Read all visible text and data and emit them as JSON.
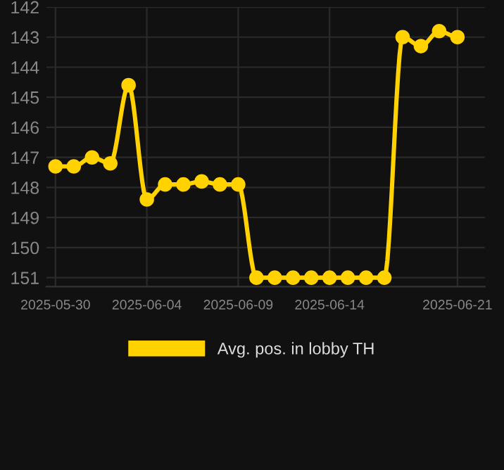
{
  "chart_data": {
    "type": "line",
    "x": [
      "2025-05-30",
      "2025-05-31",
      "2025-06-01",
      "2025-06-02",
      "2025-06-03",
      "2025-06-04",
      "2025-06-05",
      "2025-06-06",
      "2025-06-07",
      "2025-06-08",
      "2025-06-09",
      "2025-06-10",
      "2025-06-11",
      "2025-06-12",
      "2025-06-13",
      "2025-06-14",
      "2025-06-15",
      "2025-06-16",
      "2025-06-17",
      "2025-06-18",
      "2025-06-19",
      "2025-06-20",
      "2025-06-21"
    ],
    "series": [
      {
        "name": "Avg. pos. in lobby TH",
        "color": "#ffd200",
        "values": [
          147.3,
          147.3,
          147.0,
          147.2,
          144.6,
          148.4,
          147.9,
          147.9,
          147.8,
          147.9,
          147.9,
          151,
          151,
          151,
          151,
          151,
          151,
          151,
          151,
          143.0,
          143.3,
          142.8,
          143.0
        ]
      }
    ],
    "ylim": [
      151.3,
      142
    ],
    "yticks": [
      142,
      143,
      144,
      145,
      146,
      147,
      148,
      149,
      150,
      151
    ],
    "xlim": [
      "2025-05-29T12:00",
      "2025-06-22T12:00"
    ],
    "xticks": [
      "2025-05-30",
      "2025-06-04",
      "2025-06-09",
      "2025-06-14",
      "2025-06-21"
    ],
    "grid": true,
    "legend": "bottom",
    "marker": "circle",
    "line_style": "solid"
  }
}
